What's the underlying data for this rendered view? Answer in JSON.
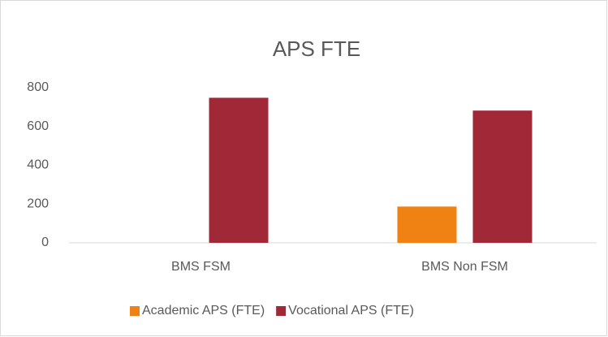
{
  "chart_data": {
    "type": "bar",
    "title": "APS FTE",
    "categories": [
      "BMS FSM",
      "BMS Non FSM"
    ],
    "series": [
      {
        "name": "Academic APS (FTE)",
        "color": "#f08113",
        "values": [
          0,
          187
        ]
      },
      {
        "name": "Vocational APS (FTE)",
        "color": "#a02837",
        "values": [
          748,
          682
        ]
      }
    ],
    "ylim": [
      0,
      800
    ],
    "yticks": [
      0,
      200,
      400,
      600,
      800
    ],
    "grid": false,
    "legend": "bottom"
  }
}
